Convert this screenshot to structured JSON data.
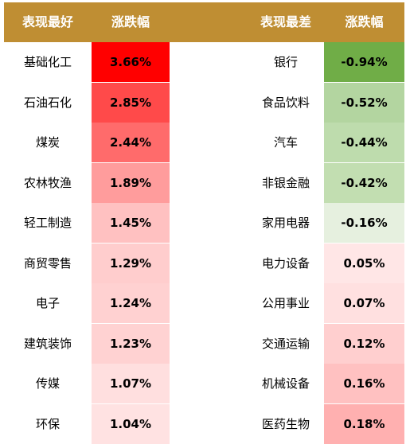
{
  "header": {
    "best_label": "表现最好",
    "best_change_label": "涨跌幅",
    "worst_label": "表现最差",
    "worst_change_label": "涨跌幅"
  },
  "best": [
    {
      "name": "基础化工",
      "value": "3.66%",
      "bg": "#FF0000"
    },
    {
      "name": "石油石化",
      "value": "2.85%",
      "bg": "#FF4A4A"
    },
    {
      "name": "煤炭",
      "value": "2.44%",
      "bg": "#FF6B6B"
    },
    {
      "name": "农林牧渔",
      "value": "1.89%",
      "bg": "#FF9C9C"
    },
    {
      "name": "轻工制造",
      "value": "1.45%",
      "bg": "#FFC1C1"
    },
    {
      "name": "商贸零售",
      "value": "1.29%",
      "bg": "#FFCDCD"
    },
    {
      "name": "电子",
      "value": "1.24%",
      "bg": "#FFD1D1"
    },
    {
      "name": "建筑装饰",
      "value": "1.23%",
      "bg": "#FFD2D2"
    },
    {
      "name": "传媒",
      "value": "1.07%",
      "bg": "#FFDFDF"
    },
    {
      "name": "环保",
      "value": "1.04%",
      "bg": "#FFE2E2"
    }
  ],
  "worst": [
    {
      "name": "银行",
      "value": "-0.94%",
      "bg": "#70AD47"
    },
    {
      "name": "食品饮料",
      "value": "-0.52%",
      "bg": "#B3D5A0"
    },
    {
      "name": "汽车",
      "value": "-0.44%",
      "bg": "#BEDCAD"
    },
    {
      "name": "非银金融",
      "value": "-0.42%",
      "bg": "#C2DEB1"
    },
    {
      "name": "家用电器",
      "value": "-0.16%",
      "bg": "#E6F0DF"
    },
    {
      "name": "电力设备",
      "value": "0.05%",
      "bg": "#FFE6E6"
    },
    {
      "name": "公用事业",
      "value": "0.07%",
      "bg": "#FFE0E0"
    },
    {
      "name": "交通运输",
      "value": "0.12%",
      "bg": "#FFCFCF"
    },
    {
      "name": "机械设备",
      "value": "0.16%",
      "bg": "#FFC1C1"
    },
    {
      "name": "医药生物",
      "value": "0.18%",
      "bg": "#FFB0B0"
    }
  ]
}
